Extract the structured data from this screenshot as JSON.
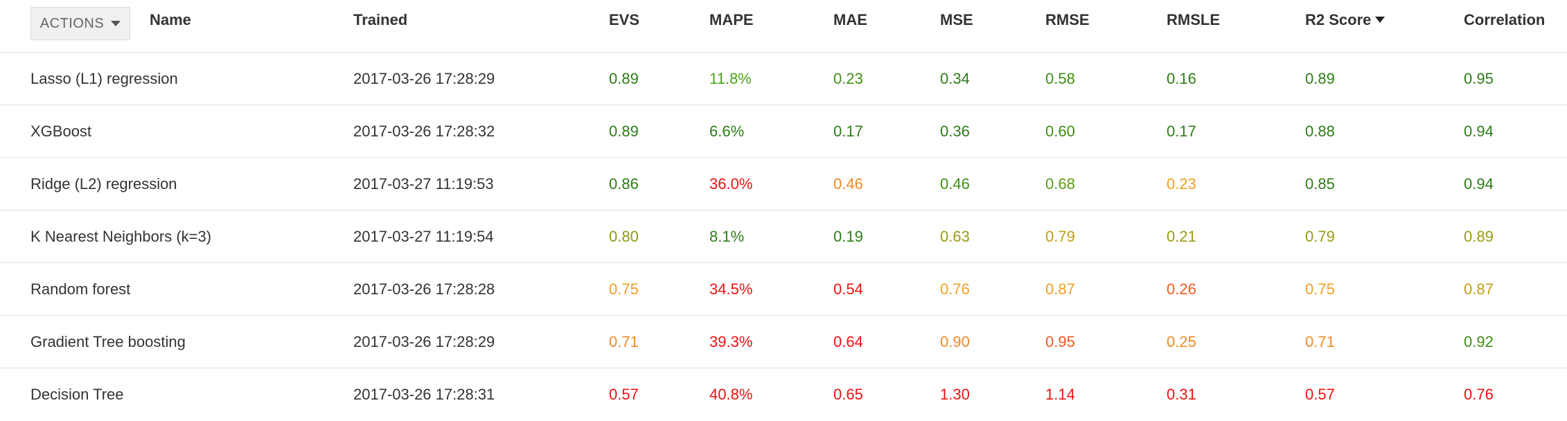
{
  "toolbar": {
    "actions_label": "ACTIONS"
  },
  "columns": [
    {
      "key": "name",
      "label": "Name",
      "sorted": false
    },
    {
      "key": "trained",
      "label": "Trained",
      "sorted": false
    },
    {
      "key": "evs",
      "label": "EVS",
      "sorted": false
    },
    {
      "key": "mape",
      "label": "MAPE",
      "sorted": false
    },
    {
      "key": "mae",
      "label": "MAE",
      "sorted": false
    },
    {
      "key": "mse",
      "label": "MSE",
      "sorted": false
    },
    {
      "key": "rmse",
      "label": "RMSE",
      "sorted": false
    },
    {
      "key": "rmsle",
      "label": "RMSLE",
      "sorted": false
    },
    {
      "key": "r2",
      "label": "R2 Score",
      "sorted": true
    },
    {
      "key": "corr",
      "label": "Correlation",
      "sorted": false
    }
  ],
  "colors": {
    "dark_green": "#2d7d16",
    "green": "#3f9a14",
    "olive": "#9a9a14",
    "orange": "#f08a24",
    "red": "#ee1111",
    "text": "#333333"
  },
  "rows": [
    {
      "name": "Lasso (L1) regression",
      "trained": "2017-03-26 17:28:29",
      "metrics": [
        {
          "value": "0.89",
          "color": "#2d7d16"
        },
        {
          "value": "11.8%",
          "color": "#4aa31e"
        },
        {
          "value": "0.23",
          "color": "#3f8f14"
        },
        {
          "value": "0.34",
          "color": "#2d7d16"
        },
        {
          "value": "0.58",
          "color": "#3f8f14"
        },
        {
          "value": "0.16",
          "color": "#2d7d16"
        },
        {
          "value": "0.89",
          "color": "#2d7d16"
        },
        {
          "value": "0.95",
          "color": "#2d7d16"
        }
      ]
    },
    {
      "name": "XGBoost",
      "trained": "2017-03-26 17:28:32",
      "metrics": [
        {
          "value": "0.89",
          "color": "#2d7d16"
        },
        {
          "value": "6.6%",
          "color": "#2d7d16"
        },
        {
          "value": "0.17",
          "color": "#2d7d16"
        },
        {
          "value": "0.36",
          "color": "#2d7d16"
        },
        {
          "value": "0.60",
          "color": "#3f8f14"
        },
        {
          "value": "0.17",
          "color": "#2d7d16"
        },
        {
          "value": "0.88",
          "color": "#2d7d16"
        },
        {
          "value": "0.94",
          "color": "#2d7d16"
        }
      ]
    },
    {
      "name": "Ridge (L2) regression",
      "trained": "2017-03-27 11:19:53",
      "metrics": [
        {
          "value": "0.86",
          "color": "#2d7d16"
        },
        {
          "value": "36.0%",
          "color": "#ee1111"
        },
        {
          "value": "0.46",
          "color": "#f08a24"
        },
        {
          "value": "0.46",
          "color": "#3f8f14"
        },
        {
          "value": "0.68",
          "color": "#5a9a14"
        },
        {
          "value": "0.23",
          "color": "#f0a020"
        },
        {
          "value": "0.85",
          "color": "#2d7d16"
        },
        {
          "value": "0.94",
          "color": "#2d7d16"
        }
      ]
    },
    {
      "name": "K Nearest Neighbors (k=3)",
      "trained": "2017-03-27 11:19:54",
      "metrics": [
        {
          "value": "0.80",
          "color": "#8a9a14"
        },
        {
          "value": "8.1%",
          "color": "#2d7d16"
        },
        {
          "value": "0.19",
          "color": "#2d7d16"
        },
        {
          "value": "0.63",
          "color": "#9a9a14"
        },
        {
          "value": "0.79",
          "color": "#c0a010"
        },
        {
          "value": "0.21",
          "color": "#9a9a14"
        },
        {
          "value": "0.79",
          "color": "#9a9a14"
        },
        {
          "value": "0.89",
          "color": "#9a9a14"
        }
      ]
    },
    {
      "name": "Random forest",
      "trained": "2017-03-26 17:28:28",
      "metrics": [
        {
          "value": "0.75",
          "color": "#f0a020"
        },
        {
          "value": "34.5%",
          "color": "#ee1111"
        },
        {
          "value": "0.54",
          "color": "#ee1111"
        },
        {
          "value": "0.76",
          "color": "#f0a020"
        },
        {
          "value": "0.87",
          "color": "#f0a020"
        },
        {
          "value": "0.26",
          "color": "#f05a20"
        },
        {
          "value": "0.75",
          "color": "#f0a020"
        },
        {
          "value": "0.87",
          "color": "#c0a010"
        }
      ]
    },
    {
      "name": "Gradient Tree boosting",
      "trained": "2017-03-26 17:28:29",
      "metrics": [
        {
          "value": "0.71",
          "color": "#f08a24"
        },
        {
          "value": "39.3%",
          "color": "#ee1111"
        },
        {
          "value": "0.64",
          "color": "#ee1111"
        },
        {
          "value": "0.90",
          "color": "#f08a24"
        },
        {
          "value": "0.95",
          "color": "#f05a20"
        },
        {
          "value": "0.25",
          "color": "#f08a24"
        },
        {
          "value": "0.71",
          "color": "#f08a24"
        },
        {
          "value": "0.92",
          "color": "#3f8f14"
        }
      ]
    },
    {
      "name": "Decision Tree",
      "trained": "2017-03-26 17:28:31",
      "metrics": [
        {
          "value": "0.57",
          "color": "#ee1111"
        },
        {
          "value": "40.8%",
          "color": "#ee1111"
        },
        {
          "value": "0.65",
          "color": "#ee1111"
        },
        {
          "value": "1.30",
          "color": "#ee1111"
        },
        {
          "value": "1.14",
          "color": "#ee1111"
        },
        {
          "value": "0.31",
          "color": "#ee1111"
        },
        {
          "value": "0.57",
          "color": "#ee1111"
        },
        {
          "value": "0.76",
          "color": "#ee1111"
        }
      ]
    }
  ]
}
